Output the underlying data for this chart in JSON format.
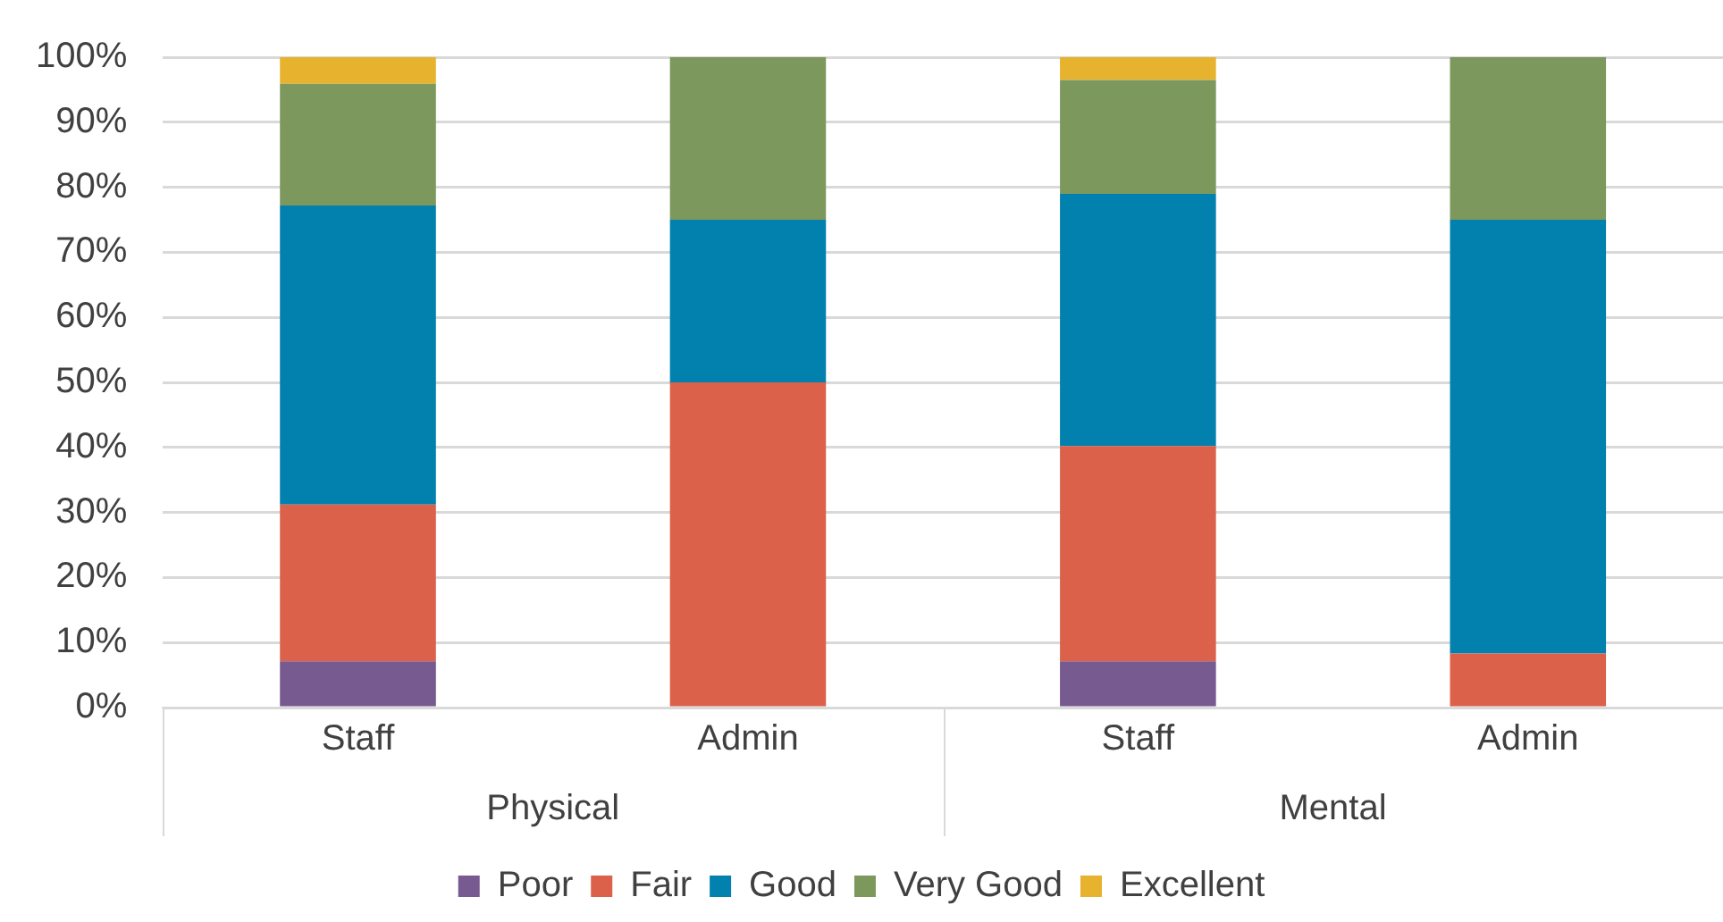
{
  "chart_data": {
    "type": "bar",
    "stacked": true,
    "categories": [
      "Staff",
      "Admin",
      "Staff",
      "Admin"
    ],
    "annotations": [
      "Physical",
      "Mental"
    ],
    "series": [
      {
        "name": "Poor",
        "color": "#775a8f",
        "values": [
          7.1,
          0,
          7.1,
          0
        ]
      },
      {
        "name": "Fair",
        "color": "#dc614a",
        "values": [
          24.1,
          50,
          33.1,
          8.3
        ]
      },
      {
        "name": "Good",
        "color": "#0281ae",
        "values": [
          46.0,
          25,
          38.8,
          66.7
        ]
      },
      {
        "name": "Very Good",
        "color": "#7c985d",
        "values": [
          18.7,
          25,
          17.5,
          25
        ]
      },
      {
        "name": "Excellent",
        "color": "#e7b22e",
        "values": [
          4.1,
          0,
          3.5,
          0
        ]
      }
    ],
    "ylim": [
      0,
      100
    ],
    "yticks": [
      {
        "value": 0,
        "label": "0%"
      },
      {
        "value": 10,
        "label": "10%"
      },
      {
        "value": 20,
        "label": "20%"
      },
      {
        "value": 30,
        "label": "30%"
      },
      {
        "value": 40,
        "label": "40%"
      },
      {
        "value": 50,
        "label": "50%"
      },
      {
        "value": 60,
        "label": "60%"
      },
      {
        "value": 70,
        "label": "70%"
      },
      {
        "value": 80,
        "label": "80%"
      },
      {
        "value": 90,
        "label": "90%"
      },
      {
        "value": 100,
        "label": "100%"
      }
    ],
    "grid": "y",
    "legend": "bottom"
  }
}
